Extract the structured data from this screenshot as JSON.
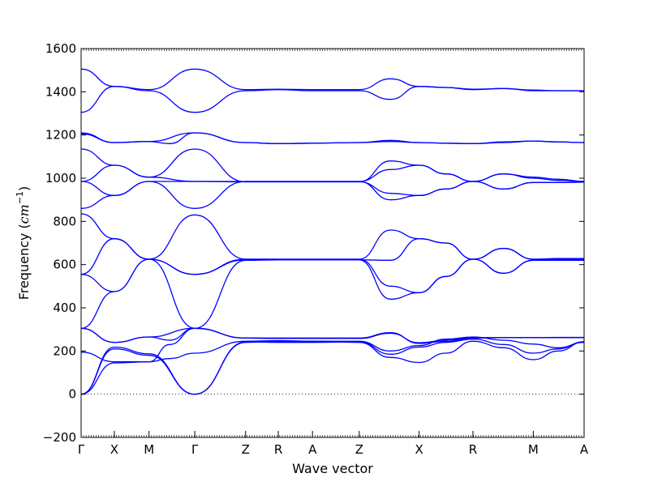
{
  "chart_data": {
    "type": "line",
    "title": "",
    "xlabel": "Wave vector",
    "ylabel_text": "Frequency (",
    "ylabel_unit": "cm",
    "ylabel_exp": "−1",
    "ylabel_close": ")",
    "ylim": [
      -200,
      1600
    ],
    "yticks": [
      -200,
      0,
      200,
      400,
      600,
      800,
      1000,
      1200,
      1400,
      1600
    ],
    "ytick_labels": [
      "−200",
      "0",
      "200",
      "400",
      "600",
      "800",
      "1000",
      "1200",
      "1400",
      "1600"
    ],
    "xlim": [
      0,
      100
    ],
    "kpoints": [
      {
        "label": "Γ",
        "x": 0
      },
      {
        "label": "X",
        "x": 6.6
      },
      {
        "label": "M",
        "x": 13.5
      },
      {
        "label": "Γ",
        "x": 22.6
      },
      {
        "label": "Z",
        "x": 32.7
      },
      {
        "label": "R",
        "x": 39.2
      },
      {
        "label": "A",
        "x": 46.0
      },
      {
        "label": "Z",
        "x": 55.3
      },
      {
        "label": "X",
        "x": 67.2
      },
      {
        "label": "R",
        "x": 77.9
      },
      {
        "label": "M",
        "x": 89.9
      },
      {
        "label": "A",
        "x": 100
      }
    ],
    "zero_line": 0,
    "line_color": "#0000ff",
    "series": [
      {
        "x": [
          0,
          6.6,
          13.5,
          22.6,
          32.7,
          39.2,
          46.0,
          55.3,
          61.5,
          67.2,
          72.5,
          77.9,
          84.0,
          89.9,
          94.9,
          100
        ],
        "values": [
          0,
          218,
          187,
          0,
          240,
          245,
          245,
          245,
          200,
          225,
          255,
          265,
          250,
          232,
          215,
          240
        ]
      },
      {
        "x": [
          0,
          6.6,
          13.5,
          22.6,
          32.7,
          39.2,
          46.0,
          55.3,
          61.5,
          67.2,
          72.5,
          77.9,
          84.0,
          89.9,
          94.9,
          100
        ],
        "values": [
          0,
          210,
          180,
          0,
          242,
          240,
          240,
          242,
          185,
          218,
          240,
          255,
          230,
          190,
          210,
          243
        ]
      },
      {
        "x": [
          0,
          6.6,
          13.5,
          17.6,
          22.6,
          32.7,
          39.2,
          46.0,
          55.3,
          61.5,
          67.2,
          72.5,
          77.9,
          84.0,
          89.9,
          94.9,
          100
        ],
        "values": [
          0,
          145,
          150,
          165,
          190,
          245,
          248,
          245,
          240,
          170,
          147,
          190,
          245,
          215,
          160,
          200,
          243
        ]
      },
      {
        "x": [
          0,
          6.6,
          13.5,
          17.6,
          22.6,
          32.7,
          39.2,
          46.0,
          55.3,
          61.5,
          67.2,
          72.5,
          77.9,
          84.0,
          89.9,
          94.9,
          100
        ],
        "values": [
          195,
          150,
          150,
          230,
          305,
          260,
          260,
          260,
          260,
          285,
          235,
          245,
          260,
          262,
          262,
          262,
          262
        ]
      },
      {
        "x": [
          0,
          6.6,
          13.5,
          17.6,
          22.6,
          32.7,
          39.2,
          46.0,
          55.3,
          61.5,
          67.2,
          72.5,
          77.9,
          84.0,
          89.9,
          94.9,
          100
        ],
        "values": [
          305,
          240,
          265,
          250,
          305,
          260,
          258,
          258,
          258,
          282,
          238,
          250,
          262,
          262,
          262,
          263,
          263
        ]
      },
      {
        "x": [
          0,
          6.6,
          13.5,
          22.6,
          32.7,
          39.2,
          46.0,
          55.3
        ],
        "values": [
          305,
          240,
          265,
          305,
          260,
          258,
          258,
          258
        ]
      },
      {
        "x": [
          0,
          6.6,
          13.5,
          22.6,
          32.7,
          39.2,
          46.0,
          55.3,
          61.5,
          67.2,
          72.5,
          77.9,
          84.0,
          89.9,
          94.9,
          100
        ],
        "values": [
          555,
          475,
          625,
          305,
          620,
          622,
          622,
          622,
          440,
          470,
          545,
          625,
          560,
          620,
          620,
          620
        ]
      },
      {
        "x": [
          0,
          6.6,
          13.5,
          22.6,
          32.7,
          39.2,
          46.0,
          55.3,
          61.5,
          67.2,
          72.5,
          77.9,
          84.0,
          89.9,
          94.9,
          100
        ],
        "values": [
          305,
          475,
          625,
          830,
          625,
          625,
          625,
          625,
          500,
          470,
          545,
          625,
          560,
          620,
          620,
          620
        ]
      },
      {
        "x": [
          0,
          6.6,
          13.5,
          22.6,
          32.7,
          39.2,
          46.0,
          55.3,
          61.5,
          67.2,
          72.5,
          77.9,
          84.0,
          89.9,
          94.9,
          100
        ],
        "values": [
          555,
          720,
          625,
          555,
          622,
          622,
          622,
          622,
          620,
          720,
          700,
          625,
          675,
          625,
          625,
          625
        ]
      },
      {
        "x": [
          0,
          6.6,
          13.5,
          22.6,
          32.7,
          39.2,
          46.0,
          55.3,
          61.5,
          67.2,
          72.5,
          77.9,
          84.0,
          89.9,
          94.9,
          100
        ],
        "values": [
          835,
          720,
          625,
          555,
          625,
          625,
          625,
          625,
          760,
          720,
          700,
          625,
          675,
          625,
          628,
          628
        ]
      },
      {
        "x": [
          0,
          6.6,
          13.5,
          22.6,
          32.7,
          39.2,
          46.0,
          55.3,
          61.5,
          67.2,
          72.5,
          77.9,
          84.0,
          89.9,
          94.9,
          100
        ],
        "values": [
          860,
          920,
          985,
          860,
          985,
          985,
          985,
          985,
          900,
          920,
          950,
          985,
          950,
          980,
          980,
          982
        ]
      },
      {
        "x": [
          0,
          6.6,
          13.5,
          22.6,
          32.7,
          39.2,
          46.0,
          55.3,
          61.5,
          67.2,
          72.5,
          77.9,
          84.0,
          89.9,
          94.9,
          100
        ],
        "values": [
          985,
          920,
          985,
          985,
          985,
          985,
          985,
          985,
          1040,
          1060,
          1020,
          985,
          1020,
          1000,
          990,
          985
        ]
      },
      {
        "x": [
          0,
          6.6,
          13.5,
          22.6,
          32.7,
          39.2,
          46.0,
          55.3,
          61.5,
          67.2,
          72.5,
          77.9,
          84.0,
          89.9,
          94.9,
          100
        ],
        "values": [
          985,
          1060,
          1005,
          985,
          983,
          983,
          983,
          983,
          930,
          920,
          950,
          985,
          950,
          980,
          980,
          982
        ]
      },
      {
        "x": [
          0,
          6.6,
          13.5,
          22.6,
          32.7,
          39.2,
          46.0,
          55.3,
          61.5,
          67.2,
          72.5,
          77.9,
          84.0,
          89.9,
          94.9,
          100
        ],
        "values": [
          1135,
          1060,
          1005,
          1135,
          983,
          983,
          983,
          983,
          1080,
          1060,
          1020,
          985,
          1020,
          1005,
          995,
          985
        ]
      },
      {
        "x": [
          0,
          6.6,
          13.5,
          22.6,
          32.7,
          39.2,
          46.0,
          55.3,
          61.5,
          67.2,
          72.5,
          77.9,
          84.0,
          89.9,
          94.9,
          100
        ],
        "values": [
          1210,
          1165,
          1170,
          1210,
          1165,
          1160,
          1162,
          1165,
          1175,
          1165,
          1162,
          1160,
          1168,
          1172,
          1168,
          1165
        ]
      },
      {
        "x": [
          0,
          6.6,
          13.5,
          17.6,
          22.6,
          32.7,
          39.2,
          46.0,
          55.3,
          61.5,
          67.2,
          72.5,
          77.9,
          84.0,
          89.9,
          94.9,
          100
        ],
        "values": [
          1205,
          1165,
          1170,
          1160,
          1210,
          1165,
          1160,
          1162,
          1165,
          1170,
          1165,
          1162,
          1160,
          1165,
          1172,
          1168,
          1165
        ]
      },
      {
        "x": [
          0,
          6.6,
          13.5,
          22.6,
          32.7,
          39.2,
          46.0,
          55.3,
          61.5,
          67.2,
          72.5,
          77.9,
          84.0,
          89.9,
          94.9,
          100
        ],
        "values": [
          1305,
          1425,
          1405,
          1305,
          1405,
          1410,
          1405,
          1405,
          1365,
          1425,
          1420,
          1410,
          1415,
          1405,
          1405,
          1405
        ]
      },
      {
        "x": [
          0,
          6.6,
          13.5,
          22.6,
          32.7,
          39.2,
          46.0,
          55.3,
          61.5,
          67.2,
          72.5,
          77.9,
          84.0,
          89.9,
          94.9,
          100
        ],
        "values": [
          1505,
          1425,
          1410,
          1505,
          1410,
          1412,
          1410,
          1410,
          1460,
          1425,
          1420,
          1412,
          1415,
          1408,
          1405,
          1405
        ]
      }
    ]
  }
}
